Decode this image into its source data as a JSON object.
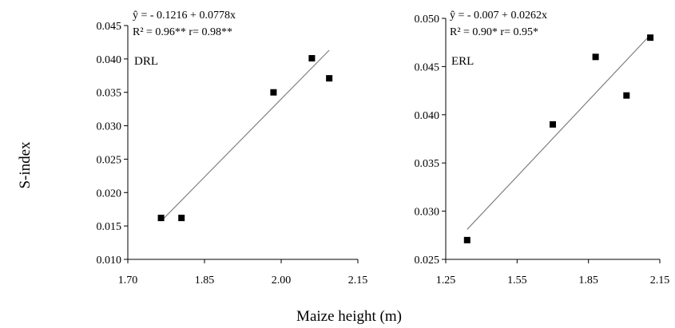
{
  "figure": {
    "ylabel": "S-index",
    "xlabel": "Maize height (m)"
  },
  "chart_data": [
    {
      "type": "scatter",
      "panel_label": "DRL",
      "equation": "ŷ =  - 0.1216  + 0.0778x",
      "stats": "R² = 0.96**  r= 0.98**",
      "xlim": [
        1.7,
        2.15
      ],
      "ylim": [
        0.01,
        0.045
      ],
      "xticks": [
        "1.70",
        "1.85",
        "2.00",
        "2.15"
      ],
      "yticks": [
        "0.010",
        "0.015",
        "0.020",
        "0.025",
        "0.030",
        "0.035",
        "0.040",
        "0.045"
      ],
      "points": [
        {
          "x": 1.765,
          "y": 0.0162
        },
        {
          "x": 1.805,
          "y": 0.0162
        },
        {
          "x": 1.985,
          "y": 0.035
        },
        {
          "x": 2.06,
          "y": 0.0401
        },
        {
          "x": 2.094,
          "y": 0.0371
        }
      ],
      "trendline": {
        "intercept": -0.1216,
        "slope": 0.0778,
        "x_range": [
          1.765,
          2.094
        ]
      },
      "grid": false
    },
    {
      "type": "scatter",
      "panel_label": "ERL",
      "equation": "ŷ = - 0.007  + 0.0262x",
      "stats": "R² = 0.90*  r= 0.95*",
      "xlim": [
        1.25,
        2.15
      ],
      "ylim": [
        0.025,
        0.05
      ],
      "xticks": [
        "1.25",
        "1.55",
        "1.85",
        "2.15"
      ],
      "yticks": [
        "0.025",
        "0.030",
        "0.035",
        "0.040",
        "0.045",
        "0.050"
      ],
      "points": [
        {
          "x": 1.34,
          "y": 0.027
        },
        {
          "x": 1.7,
          "y": 0.039
        },
        {
          "x": 1.88,
          "y": 0.046
        },
        {
          "x": 2.01,
          "y": 0.042
        },
        {
          "x": 2.11,
          "y": 0.048
        }
      ],
      "trendline": {
        "intercept": -0.007,
        "slope": 0.0262,
        "x_range": [
          1.34,
          2.11
        ]
      },
      "grid": false
    }
  ]
}
